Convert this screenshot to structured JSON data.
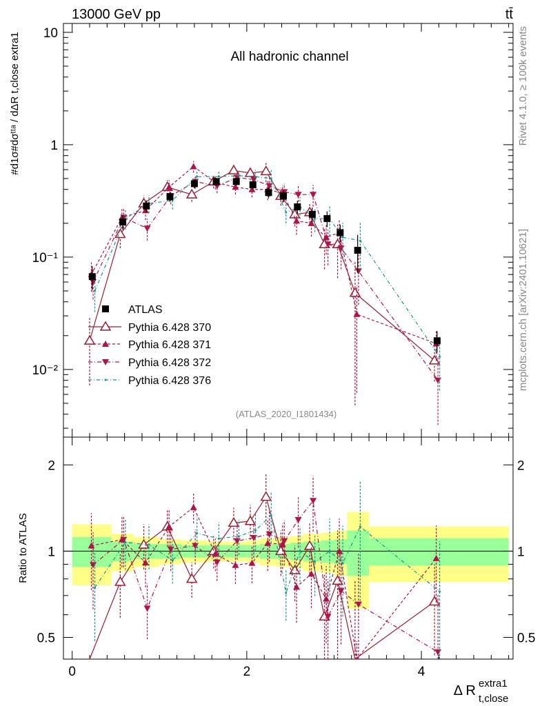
{
  "header": {
    "energy_label": "13000 GeV pp",
    "process_label": "tt̄",
    "channel_label": "All hadronic channel",
    "analysis_id": "(ATLAS_2020_I1801434)",
    "side_label_top": "Rivet 4.1.0, ≥ 100k events",
    "side_label_bottom": "mcplots.cern.ch [arXiv:2401.10621]"
  },
  "axes": {
    "y_label_main": "#d1σ#dσᵗᵗᵃ / dΔR t,close extra1",
    "y_label_ratio": "Ratio to ATLAS",
    "x_label": "Δ R",
    "x_label_sup": "extra1",
    "x_label_sub": "t,close",
    "x_ticks": [
      "0",
      "2",
      "4"
    ],
    "main_y_ticks": [
      "10",
      "1",
      "10⁻¹",
      "10⁻²"
    ],
    "ratio_y_ticks": [
      "2",
      "1",
      "0.5"
    ]
  },
  "colors": {
    "atlas": "#000000",
    "p370": "#9b1b30",
    "p371": "#b0124a",
    "p372": "#b0124a",
    "p376": "#169688",
    "band_inner": "#99ff99",
    "band_outer": "#ffff88"
  },
  "chart_data": {
    "type": "scatter",
    "x_scale": "linear",
    "y_scale_main": "log",
    "y_scale_ratio": "log",
    "xlim": [
      -0.1,
      5.05
    ],
    "ylim_main": [
      0.0025,
      12
    ],
    "ylim_ratio": [
      0.42,
      2.5
    ],
    "bin_edges": [
      0.0,
      0.45,
      0.7,
      1.0,
      1.25,
      1.55,
      1.75,
      2.0,
      2.15,
      2.35,
      2.5,
      2.65,
      2.85,
      3.0,
      3.15,
      3.4,
      5.0
    ],
    "x": [
      0.23,
      0.58,
      0.85,
      1.12,
      1.4,
      1.65,
      1.88,
      2.07,
      2.25,
      2.42,
      2.58,
      2.75,
      2.92,
      3.07,
      3.27,
      4.18
    ],
    "atlas": {
      "name": "ATLAS",
      "values": [
        0.067,
        0.205,
        0.285,
        0.345,
        0.45,
        0.47,
        0.47,
        0.44,
        0.375,
        0.35,
        0.28,
        0.24,
        0.22,
        0.165,
        0.115,
        0.018
      ],
      "stat_rel": [
        0.12,
        0.08,
        0.06,
        0.06,
        0.05,
        0.05,
        0.05,
        0.05,
        0.06,
        0.06,
        0.07,
        0.08,
        0.09,
        0.1,
        0.18,
        0.11
      ],
      "tot_rel": [
        0.24,
        0.15,
        0.12,
        0.1,
        0.09,
        0.08,
        0.08,
        0.09,
        0.11,
        0.12,
        0.13,
        0.15,
        0.16,
        0.18,
        0.37,
        0.22
      ]
    },
    "series": [
      {
        "name": "Pythia 6.428 370",
        "marker": "triangle-up-open",
        "values": [
          0.018,
          0.16,
          0.3,
          0.42,
          0.36,
          0.47,
          0.59,
          0.56,
          0.58,
          0.35,
          0.24,
          0.25,
          0.13,
          0.13,
          0.048,
          0.012
        ],
        "errors": [
          0.6,
          0.25,
          0.18,
          0.15,
          0.14,
          0.13,
          0.13,
          0.14,
          0.2,
          0.18,
          0.22,
          0.2,
          0.4,
          0.5,
          0.9,
          0.35
        ]
      },
      {
        "name": "Pythia 6.428 371",
        "marker": "triangle-up",
        "values": [
          0.07,
          0.225,
          0.26,
          0.42,
          0.64,
          0.46,
          0.42,
          0.4,
          0.4,
          0.37,
          0.21,
          0.2,
          0.15,
          0.165,
          0.031,
          0.017
        ],
        "errors": [
          0.3,
          0.2,
          0.18,
          0.15,
          0.12,
          0.13,
          0.14,
          0.15,
          0.2,
          0.18,
          0.25,
          0.24,
          0.3,
          0.3,
          0.8,
          0.3
        ]
      },
      {
        "name": "Pythia 6.428 372",
        "marker": "triangle-down",
        "values": [
          0.06,
          0.225,
          0.18,
          0.35,
          0.47,
          0.43,
          0.51,
          0.49,
          0.43,
          0.38,
          0.36,
          0.36,
          0.13,
          0.12,
          0.075,
          0.008
        ],
        "errors": [
          0.3,
          0.2,
          0.22,
          0.16,
          0.14,
          0.14,
          0.14,
          0.15,
          0.2,
          0.18,
          0.2,
          0.22,
          0.35,
          0.35,
          0.5,
          0.6
        ]
      },
      {
        "name": "Pythia 6.428 376",
        "marker": "star",
        "values": [
          0.05,
          0.22,
          0.3,
          0.32,
          0.52,
          0.52,
          0.53,
          0.52,
          0.5,
          0.25,
          0.28,
          0.22,
          0.22,
          0.15,
          0.14,
          0.013
        ],
        "errors": [
          0.35,
          0.2,
          0.18,
          0.17,
          0.14,
          0.14,
          0.14,
          0.15,
          0.2,
          0.2,
          0.22,
          0.24,
          0.3,
          0.35,
          0.45,
          0.5
        ]
      }
    ]
  }
}
